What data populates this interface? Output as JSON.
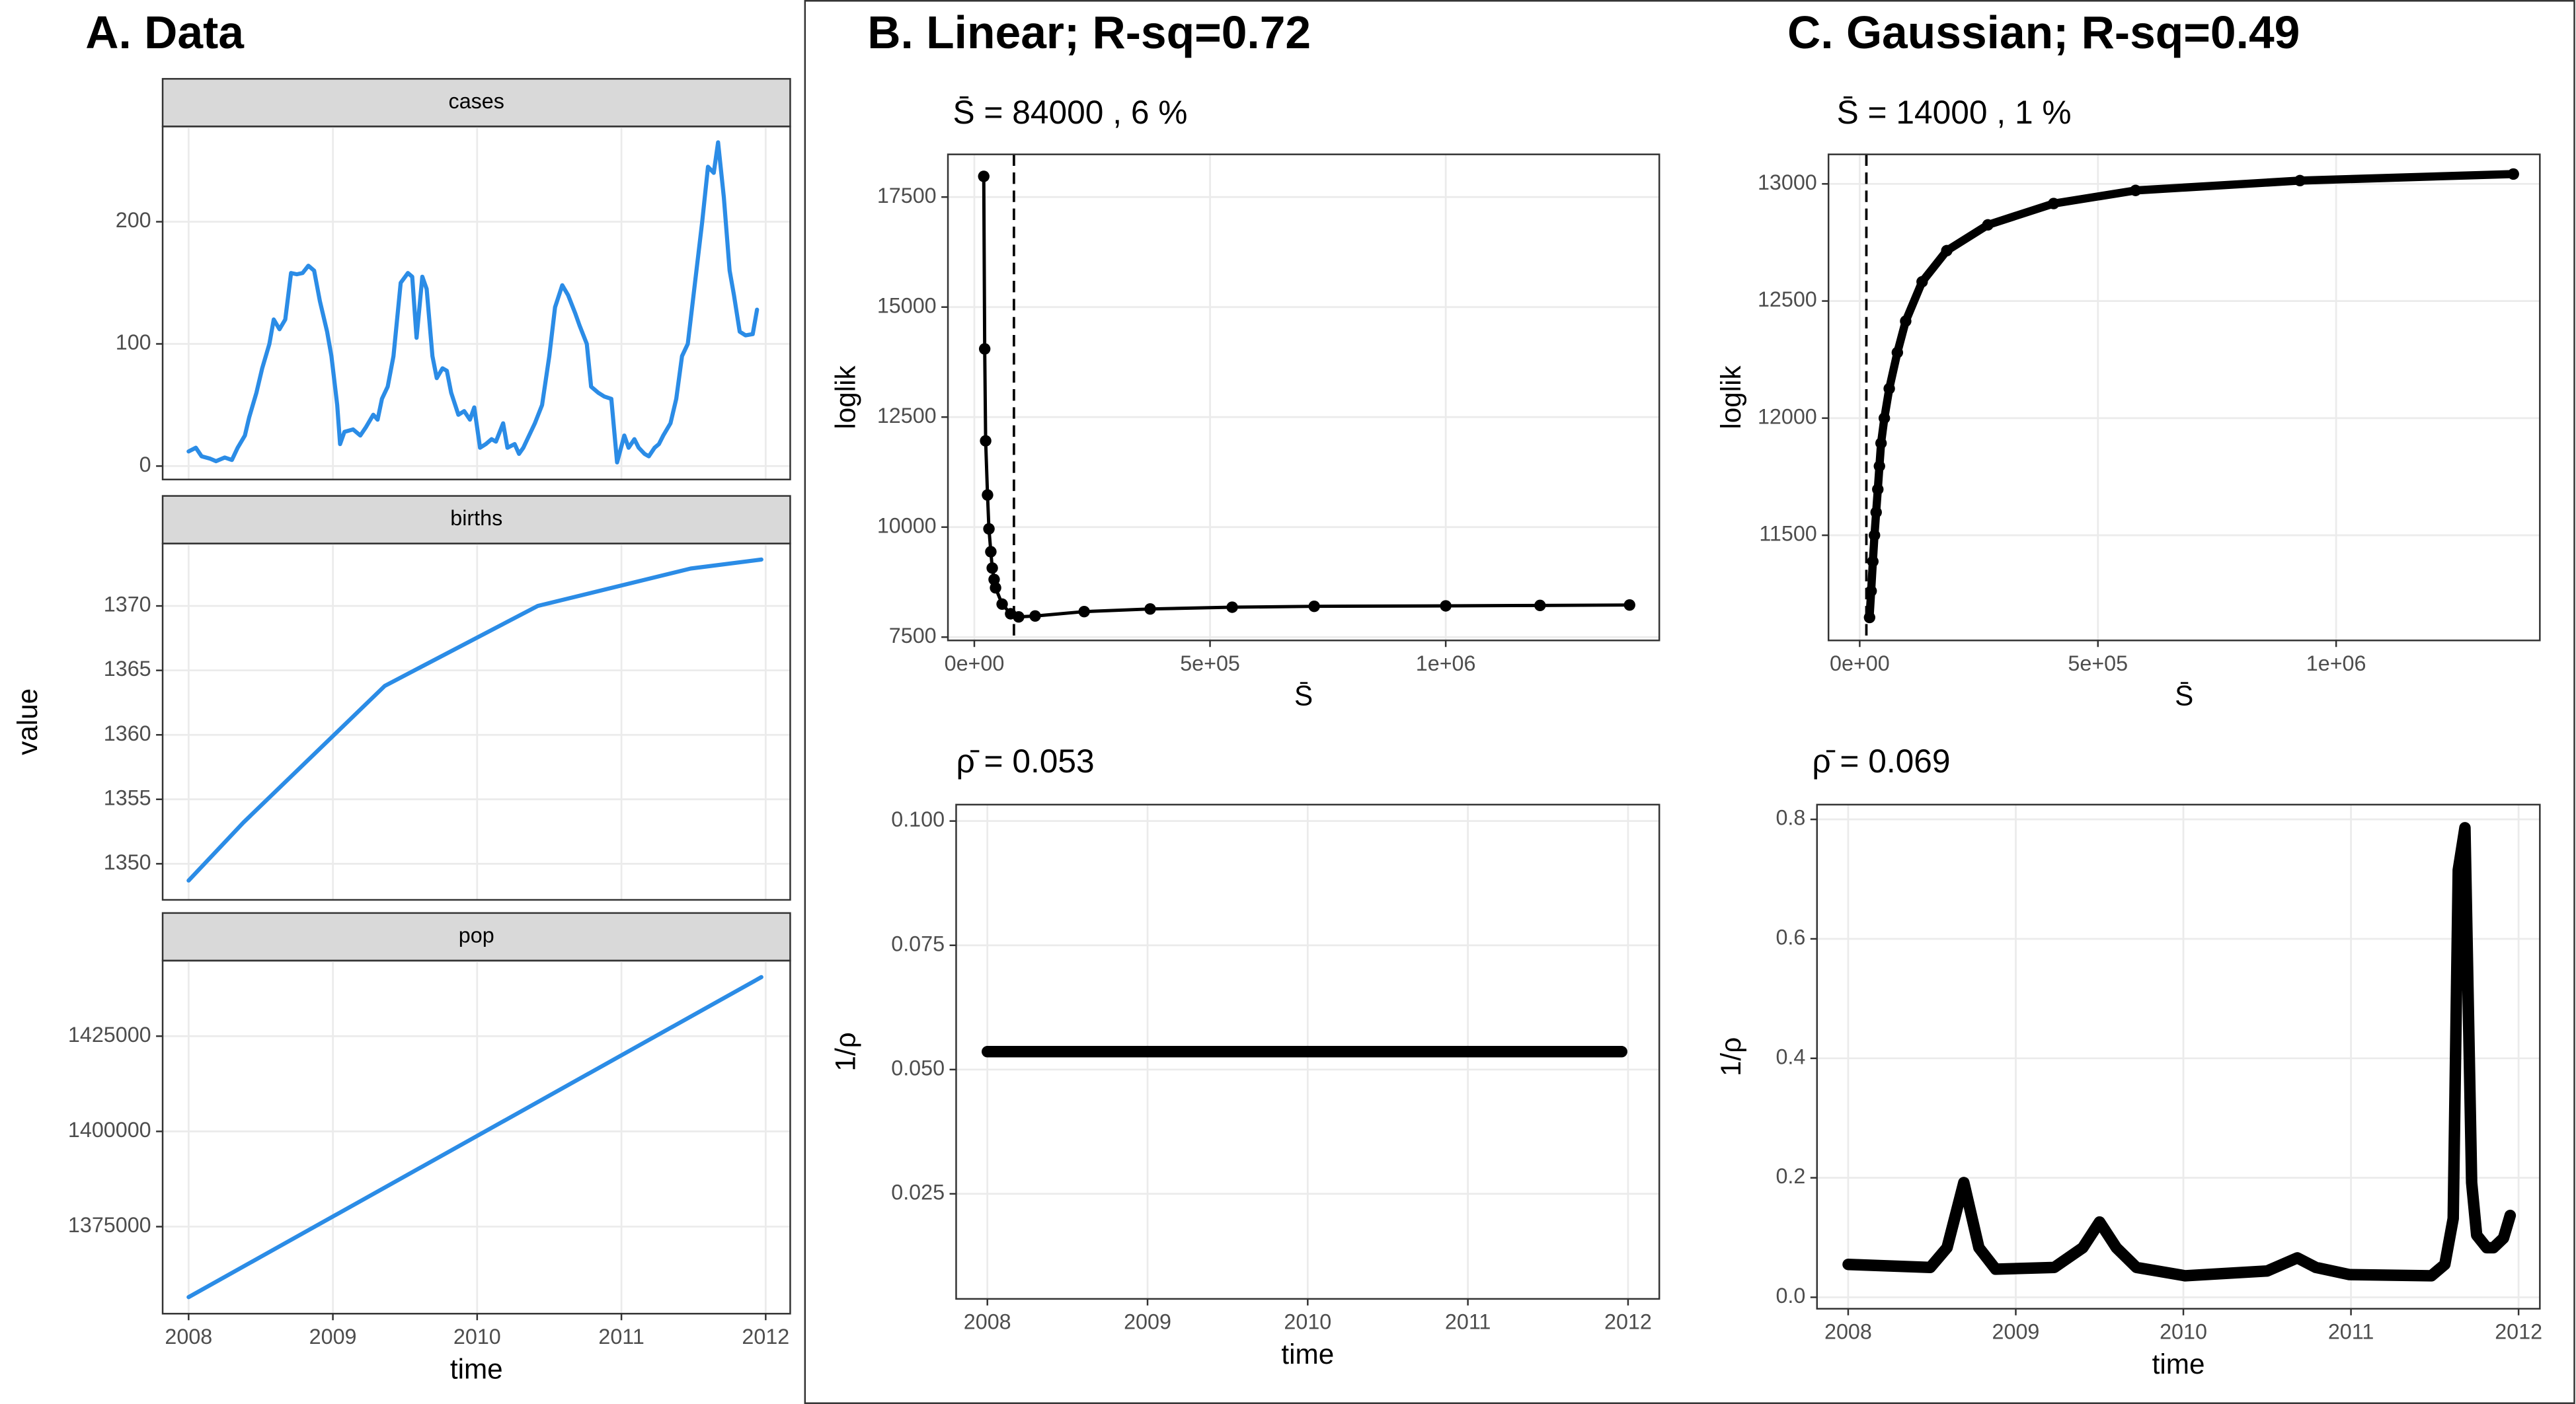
{
  "chart_data": [
    {
      "type": "line",
      "title": "A. Data",
      "strip": "cases",
      "color": "#2b8ce6",
      "x": [
        2008.0,
        2008.05,
        2008.09,
        2008.15,
        2008.19,
        2008.25,
        2008.3,
        2008.34,
        2008.39,
        2008.42,
        2008.47,
        2008.51,
        2008.56,
        2008.59,
        2008.63,
        2008.67,
        2008.71,
        2008.75,
        2008.79,
        2008.83,
        2008.87,
        2008.91,
        2008.96,
        2008.99,
        2009.03,
        2009.05,
        2009.08,
        2009.14,
        2009.19,
        2009.23,
        2009.28,
        2009.31,
        2009.34,
        2009.38,
        2009.42,
        2009.47,
        2009.52,
        2009.55,
        2009.58,
        2009.62,
        2009.65,
        2009.69,
        2009.72,
        2009.76,
        2009.79,
        2009.82,
        2009.87,
        2009.91,
        2009.95,
        2009.98,
        2010.02,
        2010.06,
        2010.1,
        2010.13,
        2010.18,
        2010.21,
        2010.26,
        2010.29,
        2010.32,
        2010.36,
        2010.4,
        2010.45,
        2010.5,
        2010.54,
        2010.59,
        2010.63,
        2010.68,
        2010.71,
        2010.76,
        2010.79,
        2010.84,
        2010.88,
        2010.93,
        2010.97,
        2011.02,
        2011.05,
        2011.09,
        2011.12,
        2011.16,
        2011.19,
        2011.23,
        2011.26,
        2011.29,
        2011.34,
        2011.38,
        2011.42,
        2011.46,
        2011.51,
        2011.56,
        2011.6,
        2011.64,
        2011.67,
        2011.71,
        2011.75,
        2011.78,
        2011.82,
        2011.86,
        2011.91,
        2011.94
      ],
      "values": [
        12,
        15,
        8,
        6,
        4,
        7,
        5,
        15,
        25,
        40,
        60,
        80,
        100,
        120,
        112,
        120,
        158,
        157,
        158,
        164,
        160,
        135,
        110,
        90,
        50,
        18,
        28,
        30,
        25,
        32,
        42,
        38,
        55,
        65,
        90,
        150,
        158,
        155,
        105,
        155,
        145,
        90,
        72,
        80,
        78,
        60,
        42,
        45,
        38,
        48,
        15,
        18,
        22,
        20,
        35,
        15,
        18,
        10,
        15,
        25,
        35,
        50,
        90,
        130,
        148,
        140,
        125,
        115,
        100,
        65,
        60,
        57,
        55,
        3,
        25,
        15,
        22,
        15,
        10,
        8,
        15,
        18,
        25,
        35,
        55,
        90,
        100,
        150,
        200,
        245,
        240,
        265,
        220,
        160,
        140,
        110,
        107,
        108,
        128
      ],
      "xlim": [
        2007.82,
        2012.17
      ],
      "xticks": [
        2008,
        2009,
        2010,
        2011,
        2012
      ],
      "ylim": [
        -11,
        278
      ],
      "yticks": [
        0,
        100,
        200
      ],
      "grid": true
    },
    {
      "type": "line",
      "strip": "births",
      "ylabel": "value",
      "color": "#2b8ce6",
      "x": [
        2008.0,
        2008.38,
        2009.36,
        2010.42,
        2011.48,
        2011.97
      ],
      "values": [
        1348.7,
        1353.2,
        1363.8,
        1370,
        1372.9,
        1373.6
      ],
      "xlim": [
        2007.82,
        2012.17
      ],
      "xticks": [
        2008,
        2009,
        2010,
        2011,
        2012
      ],
      "ylim": [
        1347.2,
        1374.84
      ],
      "yticks": [
        1350,
        1355,
        1360,
        1365,
        1370
      ],
      "grid": true
    },
    {
      "type": "line",
      "strip": "pop",
      "xlabel": "time",
      "color": "#2b8ce6",
      "x": [
        2008.0,
        2011.97
      ],
      "values": [
        1356500,
        1440500
      ],
      "xlim": [
        2007.82,
        2012.17
      ],
      "xticks": [
        2008,
        2009,
        2010,
        2011,
        2012
      ],
      "ylim": [
        1352155,
        1444828
      ],
      "yticks": [
        1375000,
        1400000,
        1425000
      ],
      "grid": true
    },
    {
      "type": "line",
      "markers": true,
      "title": "B. Linear; R-sq=0.72",
      "subtitle": "S̄ = 84000 , 6 %",
      "xlabel": "S̄",
      "ylabel": "loglik",
      "color": "#000000",
      "vline": 84000,
      "x": [
        20000,
        22000,
        24000,
        28000,
        31000,
        35000,
        38000,
        42000,
        45000,
        59000,
        77000,
        94000,
        129000,
        233000,
        373000,
        547000,
        721000,
        1000000,
        1200000,
        1390000
      ],
      "values": [
        17970,
        14050,
        11960,
        10730,
        9960,
        9440,
        9070,
        8810,
        8620,
        8250,
        8030,
        7960,
        7980,
        8080,
        8140,
        8180,
        8200,
        8210,
        8220,
        8230
      ],
      "xlim": [
        -56000,
        1453000
      ],
      "xticks": [
        {
          "value": 0,
          "label": "0e+00"
        },
        {
          "value": 500000,
          "label": "5e+05"
        },
        {
          "value": 1000000,
          "label": "1e+06"
        }
      ],
      "ylim": [
        7425,
        18470
      ],
      "yticks": [
        7500,
        10000,
        12500,
        15000,
        17500
      ],
      "grid": true
    },
    {
      "type": "line",
      "subtitle": "ρ̄ = 0.053",
      "xlabel": "time",
      "ylabel": "1/ρ",
      "color": "#000000",
      "x": [
        2008.0,
        2011.96
      ],
      "values": [
        0.0536,
        0.0536
      ],
      "xlim": [
        2007.805,
        2012.195
      ],
      "xticks": [
        2008,
        2009,
        2010,
        2011,
        2012
      ],
      "ylim": [
        0.00386,
        0.1033
      ],
      "yticks": [
        {
          "value": 0.025,
          "label": "0.025"
        },
        {
          "value": 0.05,
          "label": "0.050"
        },
        {
          "value": 0.075,
          "label": "0.075"
        },
        {
          "value": 0.1,
          "label": "0.100"
        }
      ],
      "grid": true
    },
    {
      "type": "line",
      "markers": true,
      "title": "C. Gaussian; R-sq=0.49",
      "subtitle": "S̄ = 14000 , 1 %",
      "xlabel": "S̄",
      "ylabel": "loglik",
      "color": "#000000",
      "vline": 14000,
      "x": [
        20700,
        24000,
        27600,
        31000,
        34500,
        38000,
        41400,
        44800,
        51700,
        62000,
        79000,
        96500,
        131000,
        182800,
        269000,
        407000,
        579000,
        924000,
        1372000
      ],
      "values": [
        11149,
        11262,
        11388,
        11500,
        11598,
        11696,
        11795,
        11893,
        12000,
        12126,
        12280,
        12414,
        12582,
        12715,
        12825,
        12916,
        12972,
        13014,
        13042
      ],
      "xlim": [
        -65500,
        1427600
      ],
      "xticks": [
        {
          "value": 0,
          "label": "0e+00"
        },
        {
          "value": 500000,
          "label": "5e+05"
        },
        {
          "value": 1000000,
          "label": "1e+06"
        }
      ],
      "ylim": [
        11051,
        13126
      ],
      "yticks": [
        11500,
        12000,
        12500,
        13000
      ],
      "grid": true
    },
    {
      "type": "line",
      "subtitle": "ρ̄ = 0.069",
      "xlabel": "time",
      "ylabel": "1/ρ",
      "color": "#000000",
      "x": [
        2008.0,
        2008.49,
        2008.59,
        2008.69,
        2008.78,
        2008.88,
        2009.23,
        2009.4,
        2009.5,
        2009.6,
        2009.72,
        2010.01,
        2010.5,
        2010.68,
        2010.79,
        2010.99,
        2011.48,
        2011.56,
        2011.61,
        2011.64,
        2011.68,
        2011.72,
        2011.75,
        2011.81,
        2011.85,
        2011.91,
        2011.95
      ],
      "values": [
        0.055,
        0.05,
        0.083,
        0.192,
        0.083,
        0.047,
        0.05,
        0.083,
        0.126,
        0.083,
        0.05,
        0.036,
        0.044,
        0.066,
        0.05,
        0.038,
        0.036,
        0.055,
        0.132,
        0.715,
        0.786,
        0.192,
        0.104,
        0.083,
        0.083,
        0.099,
        0.137
      ],
      "xlim": [
        2007.814,
        2012.127
      ],
      "xticks": [
        2008,
        2009,
        2010,
        2011,
        2012
      ],
      "ylim": [
        -0.0192,
        0.8247
      ],
      "yticks": [
        {
          "value": 0,
          "label": "0.0"
        },
        0.2,
        0.4,
        0.6,
        0.8
      ],
      "grid": true
    }
  ]
}
